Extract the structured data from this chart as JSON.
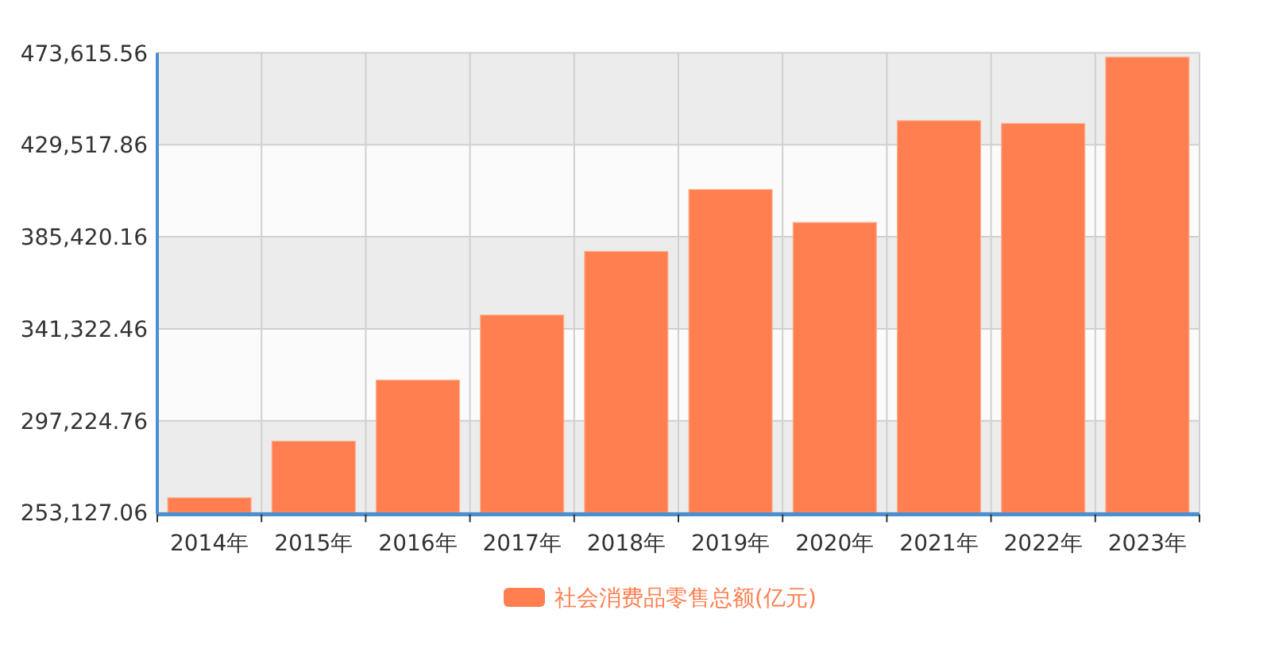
{
  "chart_data": {
    "type": "bar",
    "categories": [
      "2014年",
      "2015年",
      "2016年",
      "2017年",
      "2018年",
      "2019年",
      "2020年",
      "2021年",
      "2022年",
      "2023年"
    ],
    "series": [
      {
        "name": "社会消费品零售总额(亿元)",
        "color": "#ff7f50",
        "values": [
          260300,
          287400,
          316700,
          347900,
          378400,
          408100,
          392300,
          441100,
          439800,
          471600
        ]
      }
    ],
    "ylim": [
      253127.06,
      473615.56
    ],
    "yticks": [
      {
        "value": 253127.06,
        "label": "253,127.06"
      },
      {
        "value": 297224.76,
        "label": "297,224.76"
      },
      {
        "value": 341322.46,
        "label": "341,322.46"
      },
      {
        "value": 385420.16,
        "label": "385,420.16"
      },
      {
        "value": 429517.86,
        "label": "429,517.86"
      },
      {
        "value": 473615.56,
        "label": "473,615.56"
      }
    ],
    "grid": true,
    "legend": "bottom"
  }
}
